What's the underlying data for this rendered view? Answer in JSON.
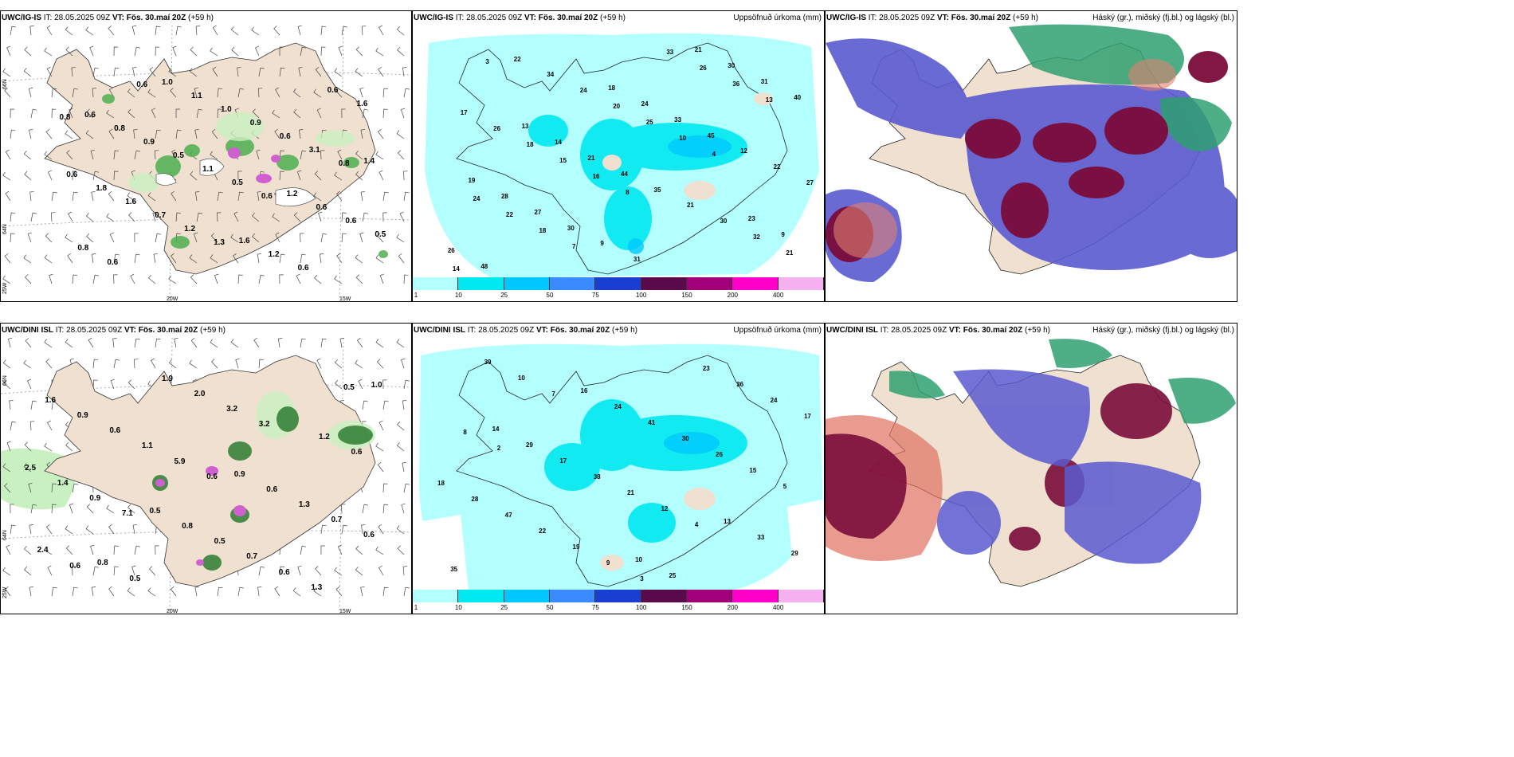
{
  "panels": {
    "p1": {
      "model": "UWC/IG-IS",
      "it_label": "IT:",
      "it": "28.05.2025 09Z",
      "vt_label": "VT:",
      "vt": "Fös. 30.maí 20Z",
      "lead": "(+59 h)",
      "right": ""
    },
    "p2": {
      "model": "UWC/IG-IS",
      "it_label": "IT:",
      "it": "28.05.2025 09Z",
      "vt_label": "VT:",
      "vt": "Fös. 30.maí 20Z",
      "lead": "(+59 h)",
      "right": "Uppsöfnuð úrkoma (mm)"
    },
    "p3": {
      "model": "UWC/IG-IS",
      "it_label": "IT:",
      "it": "28.05.2025 09Z",
      "vt_label": "VT:",
      "vt": "Fös. 30.maí 20Z",
      "lead": "(+59 h)",
      "right": "Háský (gr.), miðský (fj.bl.) og lágský (bl.)"
    },
    "p4": {
      "model": "UWC/DINI ISL",
      "it_label": "IT:",
      "it": "28.05.2025 09Z",
      "vt_label": "VT:",
      "vt": "Fös. 30.maí 20Z",
      "lead": "(+59 h)",
      "right": ""
    },
    "p5": {
      "model": "UWC/DINI ISL",
      "it_label": "IT:",
      "it": "28.05.2025 09Z",
      "vt_label": "VT:",
      "vt": "Fös. 30.maí 20Z",
      "lead": "(+59 h)",
      "right": "Uppsöfnuð úrkoma (mm)"
    },
    "p6": {
      "model": "UWC/DINI ISL",
      "it_label": "IT:",
      "it": "28.05.2025 09Z",
      "vt_label": "VT:",
      "vt": "Fös. 30.maí 20Z",
      "lead": "(+59 h)",
      "right": "Háský (gr.), miðský (fj.bl.) og lágský (bl.)"
    }
  },
  "grid_labels": {
    "lat_66": "66N",
    "lat_64": "64N",
    "lon_20": "20W",
    "lon_15": "15W",
    "lon_25": "25W"
  },
  "colorbar": {
    "ticks": [
      "1",
      "10",
      "25",
      "50",
      "75",
      "100",
      "150",
      "200",
      "400"
    ],
    "colors": [
      "#b3ffff",
      "#00e8f0",
      "#00c8ff",
      "#3a8bff",
      "#1a3fd0",
      "#5a0a4a",
      "#a0007a",
      "#ff00c8",
      "#f5b0f0"
    ]
  },
  "precip_labels_top": [
    "0.6",
    "1.2",
    "1.0",
    "1.4",
    "1.6",
    "0.8",
    "0.6",
    "1.1",
    "0.6",
    "1.2",
    "0.9",
    "0.6",
    "1.0",
    "1.8",
    "0.6",
    "0.5",
    "0.5",
    "0.9",
    "1.6",
    "0.6",
    "1.1",
    "0.8",
    "0.6",
    "0.7",
    "1.6",
    "0.5",
    "0.6",
    "3.1",
    "1.2",
    "0.8",
    "0.6",
    "0.6",
    "0.8",
    "1.3"
  ],
  "precip_labels_bottom": [
    "0.5",
    "1.0",
    "0.9",
    "0.8",
    "1.2",
    "0.8",
    "1.6",
    "0.6",
    "0.5",
    "0.6",
    "0.5",
    "0.9",
    "1.3",
    "1.9",
    "2.5",
    "0.7",
    "0.6",
    "0.7",
    "2.0",
    "1.4",
    "0.6",
    "1.1",
    "0.6",
    "3.2",
    "0.9",
    "1.3",
    "5.9",
    "2.4",
    "3.2",
    "7.1",
    "0.5",
    "0.6",
    "0.6"
  ],
  "accum_top": [
    "13",
    "23",
    "18",
    "19",
    "21",
    "14",
    "9",
    "24",
    "28",
    "30",
    "21",
    "26",
    "33",
    "27",
    "31",
    "44",
    "48",
    "45",
    "30",
    "40",
    "35",
    "22",
    "12",
    "9",
    "17",
    "21",
    "34",
    "22",
    "31",
    "26",
    "30",
    "24",
    "27",
    "33",
    "18",
    "32",
    "20",
    "24",
    "26",
    "15",
    "21",
    "25",
    "22",
    "36",
    "16",
    "14",
    "10",
    "18",
    "13",
    "8",
    "3",
    "4",
    "7"
  ],
  "accum_bottom": [
    "10",
    "14",
    "13",
    "16",
    "18",
    "25",
    "29",
    "33",
    "24",
    "28",
    "23",
    "17",
    "29",
    "41",
    "47",
    "36",
    "38",
    "35",
    "30",
    "22",
    "24",
    "21",
    "39",
    "26",
    "19",
    "17",
    "12",
    "10",
    "15",
    "9",
    "8",
    "4",
    "7",
    "5",
    "3",
    "2"
  ]
}
